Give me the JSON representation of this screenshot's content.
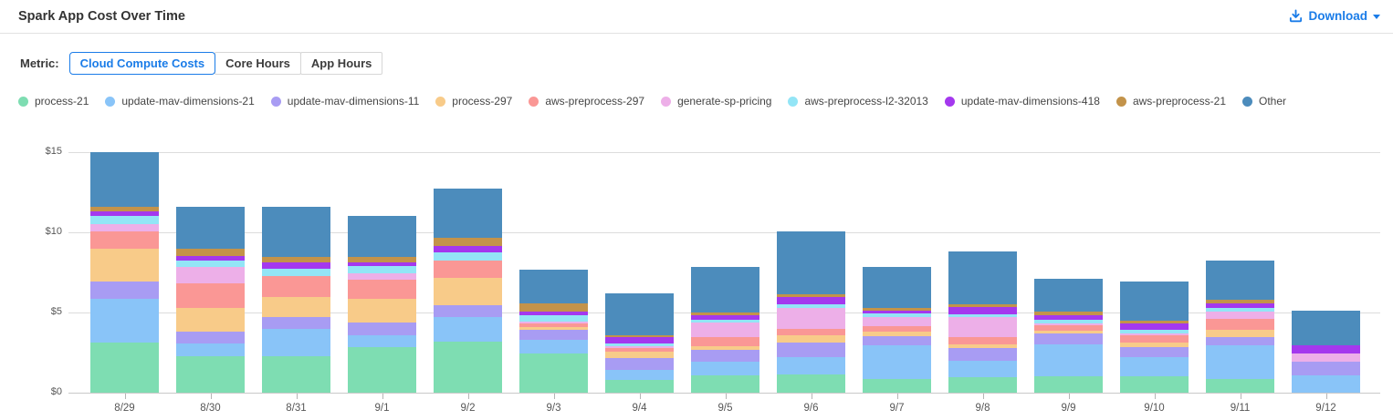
{
  "header": {
    "title": "Spark App Cost Over Time",
    "download_label": "Download",
    "accent_color": "#1a7ce8"
  },
  "metric": {
    "label": "Metric:",
    "options": [
      {
        "label": "Cloud Compute Costs",
        "selected": true
      },
      {
        "label": "Core Hours",
        "selected": false
      },
      {
        "label": "App Hours",
        "selected": false
      }
    ]
  },
  "chart_data": {
    "type": "bar",
    "stacked": true,
    "title": "Spark App Cost Over Time",
    "xlabel": "",
    "ylabel": "Cloud Compute Costs ($)",
    "ylim": [
      0,
      15
    ],
    "grid": true,
    "legend_position": "top",
    "yticks": [
      {
        "value": 0,
        "label": "$0"
      },
      {
        "value": 5,
        "label": "$5"
      },
      {
        "value": 10,
        "label": "$10"
      },
      {
        "value": 15,
        "label": "$15"
      }
    ],
    "categories": [
      "8/29",
      "8/30",
      "8/31",
      "9/1",
      "9/2",
      "9/3",
      "9/4",
      "9/5",
      "9/6",
      "9/7",
      "9/8",
      "9/9",
      "9/10",
      "9/11",
      "9/12"
    ],
    "series": [
      {
        "name": "process-21",
        "color": "#7eddb2",
        "values": [
          3.1,
          2.25,
          2.25,
          2.85,
          3.2,
          2.45,
          0.8,
          1.1,
          1.15,
          0.87,
          0.95,
          1.05,
          1.05,
          0.85,
          0
        ]
      },
      {
        "name": "update-mav-dimensions-21",
        "color": "#89c4f8",
        "values": [
          2.75,
          0.8,
          1.7,
          0.75,
          1.5,
          0.85,
          0.6,
          0.85,
          1.05,
          2.08,
          1.05,
          1.95,
          1.15,
          2.1,
          1.1
        ]
      },
      {
        "name": "update-mav-dimensions-11",
        "color": "#a89cf3",
        "values": [
          1.1,
          0.75,
          0.75,
          0.75,
          0.75,
          0.6,
          0.75,
          0.7,
          0.95,
          0.6,
          0.8,
          0.7,
          0.65,
          0.52,
          0.82
        ]
      },
      {
        "name": "process-297",
        "color": "#f8cb89",
        "values": [
          2.05,
          1.5,
          1.25,
          1.5,
          1.7,
          0.2,
          0.4,
          0.25,
          0.43,
          0.23,
          0.23,
          0.16,
          0.3,
          0.47,
          0
        ]
      },
      {
        "name": "aws-preprocess-297",
        "color": "#fa9795",
        "values": [
          1.05,
          1.5,
          1.3,
          1.2,
          1.1,
          0.22,
          0.25,
          0.57,
          0.38,
          0.35,
          0.45,
          0.35,
          0.45,
          0.66,
          0
        ]
      },
      {
        "name": "generate-sp-pricing",
        "color": "#edafe8",
        "values": [
          0.45,
          1.05,
          0,
          0.4,
          0,
          0.1,
          0.12,
          0.9,
          1.35,
          0.6,
          1.25,
          0.13,
          0.11,
          0.48,
          0.51
        ]
      },
      {
        "name": "aws-preprocess-l2-32013",
        "color": "#93e5f6",
        "values": [
          0.5,
          0.4,
          0.45,
          0.45,
          0.5,
          0.4,
          0.12,
          0.2,
          0.18,
          0.19,
          0.15,
          0.19,
          0.19,
          0.22,
          0
        ]
      },
      {
        "name": "update-mav-dimensions-418",
        "color": "#a438ee",
        "values": [
          0.3,
          0.25,
          0.45,
          0.25,
          0.4,
          0.22,
          0.4,
          0.25,
          0.48,
          0.19,
          0.45,
          0.28,
          0.42,
          0.25,
          0.51
        ]
      },
      {
        "name": "aws-preprocess-21",
        "color": "#c3934a",
        "values": [
          0.3,
          0.45,
          0.3,
          0.3,
          0.5,
          0.52,
          0.12,
          0.2,
          0.18,
          0.19,
          0.19,
          0.23,
          0.19,
          0.23,
          0
        ]
      },
      {
        "name": "Other",
        "color": "#4c8cbc",
        "values": [
          3.4,
          2.65,
          3.15,
          2.55,
          3.1,
          2.1,
          2.65,
          2.8,
          3.9,
          2.52,
          3.3,
          2.05,
          2.4,
          2.45,
          2.17
        ]
      }
    ]
  }
}
